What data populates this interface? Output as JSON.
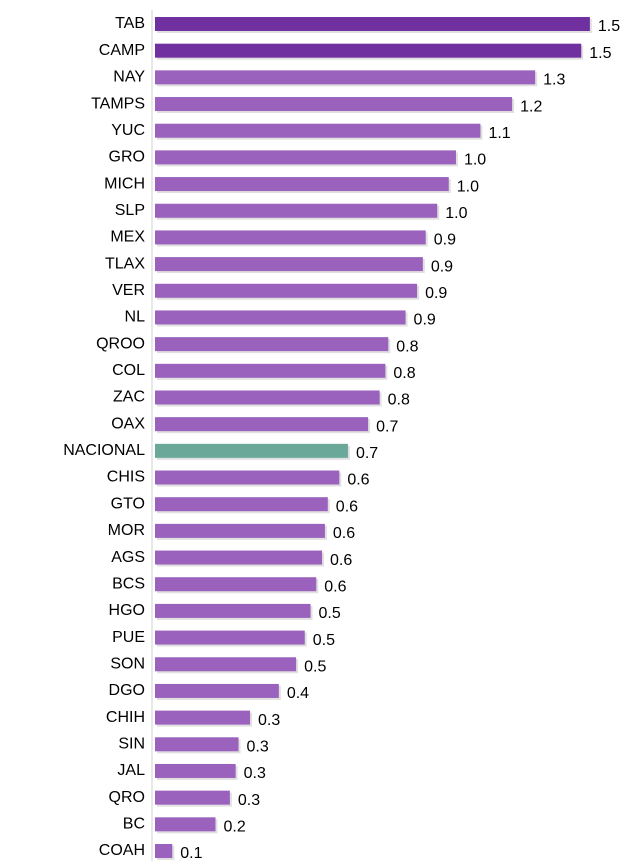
{
  "chart_data": {
    "type": "barh",
    "categories": [
      "TAB",
      "CAMP",
      "NAY",
      "TAMPS",
      "YUC",
      "GRO",
      "MICH",
      "SLP",
      "MEX",
      "TLAX",
      "VER",
      "NL",
      "QROO",
      "COL",
      "ZAC",
      "OAX",
      "NACIONAL",
      "CHIS",
      "GTO",
      "MOR",
      "AGS",
      "BCS",
      "HGO",
      "PUE",
      "SON",
      "DGO",
      "CHIH",
      "SIN",
      "JAL",
      "QRO",
      "BC",
      "COAH"
    ],
    "values": [
      1.51,
      1.48,
      1.32,
      1.24,
      1.13,
      1.045,
      1.02,
      0.98,
      0.94,
      0.93,
      0.91,
      0.87,
      0.81,
      0.8,
      0.78,
      0.74,
      0.67,
      0.64,
      0.6,
      0.59,
      0.58,
      0.56,
      0.54,
      0.52,
      0.49,
      0.43,
      0.33,
      0.29,
      0.28,
      0.26,
      0.21,
      0.06
    ],
    "value_labels": [
      "1.5",
      "1.5",
      "1.3",
      "1.2",
      "1.1",
      "1.0",
      "1.0",
      "1.0",
      "0.9",
      "0.9",
      "0.9",
      "0.9",
      "0.8",
      "0.8",
      "0.8",
      "0.7",
      "0.7",
      "0.6",
      "0.6",
      "0.6",
      "0.6",
      "0.6",
      "0.5",
      "0.5",
      "0.5",
      "0.4",
      "0.3",
      "0.3",
      "0.3",
      "0.3",
      "0.2",
      "0.1"
    ],
    "colors": [
      "#7030a0",
      "#7030a0",
      "#9a62bd",
      "#9a62bd",
      "#9a62bd",
      "#9a62bd",
      "#9a62bd",
      "#9a62bd",
      "#9a62bd",
      "#9a62bd",
      "#9a62bd",
      "#9a62bd",
      "#9a62bd",
      "#9a62bd",
      "#9a62bd",
      "#9a62bd",
      "#6aa99a",
      "#9a62bd",
      "#9a62bd",
      "#9a62bd",
      "#9a62bd",
      "#9a62bd",
      "#9a62bd",
      "#9a62bd",
      "#9a62bd",
      "#9a62bd",
      "#9a62bd",
      "#9a62bd",
      "#9a62bd",
      "#9a62bd",
      "#9a62bd",
      "#9a62bd"
    ]
  }
}
